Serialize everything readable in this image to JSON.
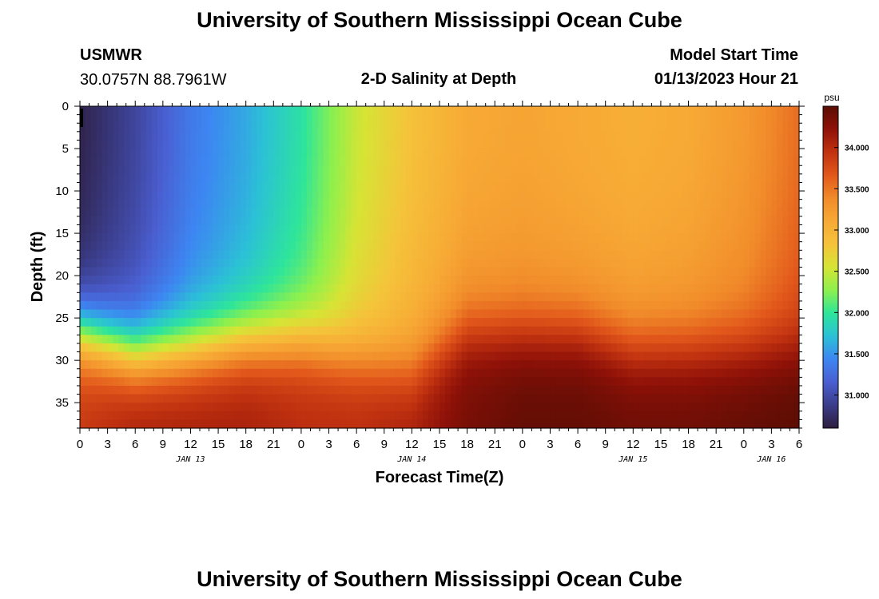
{
  "header": {
    "title": "University of Southern Mississippi Ocean Cube",
    "station_id": "USMWR",
    "station_coords": "30.0757N  88.7961W",
    "plot_title": "2-D Salinity at Depth",
    "start_label": "Model Start Time",
    "start_value": "01/13/2023 Hour 21"
  },
  "footer": {
    "title": "University of Southern Mississippi Ocean Cube"
  },
  "chart_data": {
    "type": "heatmap",
    "xlabel": "Forecast Time(Z)",
    "ylabel": "Depth (ft)",
    "x_ticks": [
      "0",
      "3",
      "6",
      "9",
      "12",
      "15",
      "18",
      "21",
      "0",
      "3",
      "6",
      "9",
      "12",
      "15",
      "18",
      "21",
      "0",
      "3",
      "6",
      "9",
      "12",
      "15",
      "18",
      "21",
      "0",
      "3",
      "6"
    ],
    "x_day_labels": [
      {
        "label": "JAN 13",
        "tick_index": 4
      },
      {
        "label": "JAN 14",
        "tick_index": 12
      },
      {
        "label": "JAN 15",
        "tick_index": 20
      },
      {
        "label": "JAN 16",
        "tick_index": 25
      }
    ],
    "y_ticks": [
      0,
      5,
      10,
      15,
      20,
      25,
      30,
      35
    ],
    "y_range": [
      0,
      38
    ],
    "x_range_hours": [
      0,
      78
    ],
    "colorbar": {
      "unit": "psu",
      "range": [
        30.6,
        34.5
      ],
      "tick_values": [
        31.0,
        31.5,
        32.0,
        32.5,
        33.0,
        33.5,
        34.0
      ],
      "tick_labels": [
        "31.000",
        "31.500",
        "32.000",
        "32.500",
        "33.000",
        "33.500",
        "34.000"
      ],
      "colors": [
        "#2d1e3e",
        "#3b3d8a",
        "#4a5ed0",
        "#3d86f2",
        "#2bc1d6",
        "#2ee59a",
        "#8df04d",
        "#d6e435",
        "#f5c33a",
        "#f7a935",
        "#f18b2a",
        "#e2581b",
        "#c13210",
        "#8f1108",
        "#5a0d04"
      ]
    },
    "salinity_profile_columns": [
      {
        "hour": 0,
        "surface": 30.65,
        "bottom": 33.9,
        "halocline_ft": 27.0
      },
      {
        "hour": 6,
        "surface": 30.95,
        "bottom": 34.1,
        "halocline_ft": 29.5
      },
      {
        "hour": 12,
        "surface": 31.35,
        "bottom": 34.1,
        "halocline_ft": 29.0
      },
      {
        "hour": 18,
        "surface": 31.6,
        "bottom": 34.1,
        "halocline_ft": 28.0
      },
      {
        "hour": 24,
        "surface": 31.95,
        "bottom": 34.0,
        "halocline_ft": 28.0
      },
      {
        "hour": 30,
        "surface": 32.5,
        "bottom": 34.0,
        "halocline_ft": 30.0
      },
      {
        "hour": 36,
        "surface": 32.85,
        "bottom": 34.1,
        "halocline_ft": 31.5
      },
      {
        "hour": 42,
        "surface": 33.1,
        "bottom": 34.35,
        "halocline_ft": 27.0
      },
      {
        "hour": 48,
        "surface": 33.15,
        "bottom": 34.45,
        "halocline_ft": 27.0
      },
      {
        "hour": 54,
        "surface": 33.1,
        "bottom": 34.45,
        "halocline_ft": 27.0
      },
      {
        "hour": 60,
        "surface": 33.05,
        "bottom": 34.4,
        "halocline_ft": 29.0
      },
      {
        "hour": 66,
        "surface": 33.1,
        "bottom": 34.4,
        "halocline_ft": 29.0
      },
      {
        "hour": 72,
        "surface": 33.25,
        "bottom": 34.45,
        "halocline_ft": 29.0
      },
      {
        "hour": 78,
        "surface": 33.55,
        "bottom": 34.5,
        "halocline_ft": 29.0
      }
    ]
  }
}
